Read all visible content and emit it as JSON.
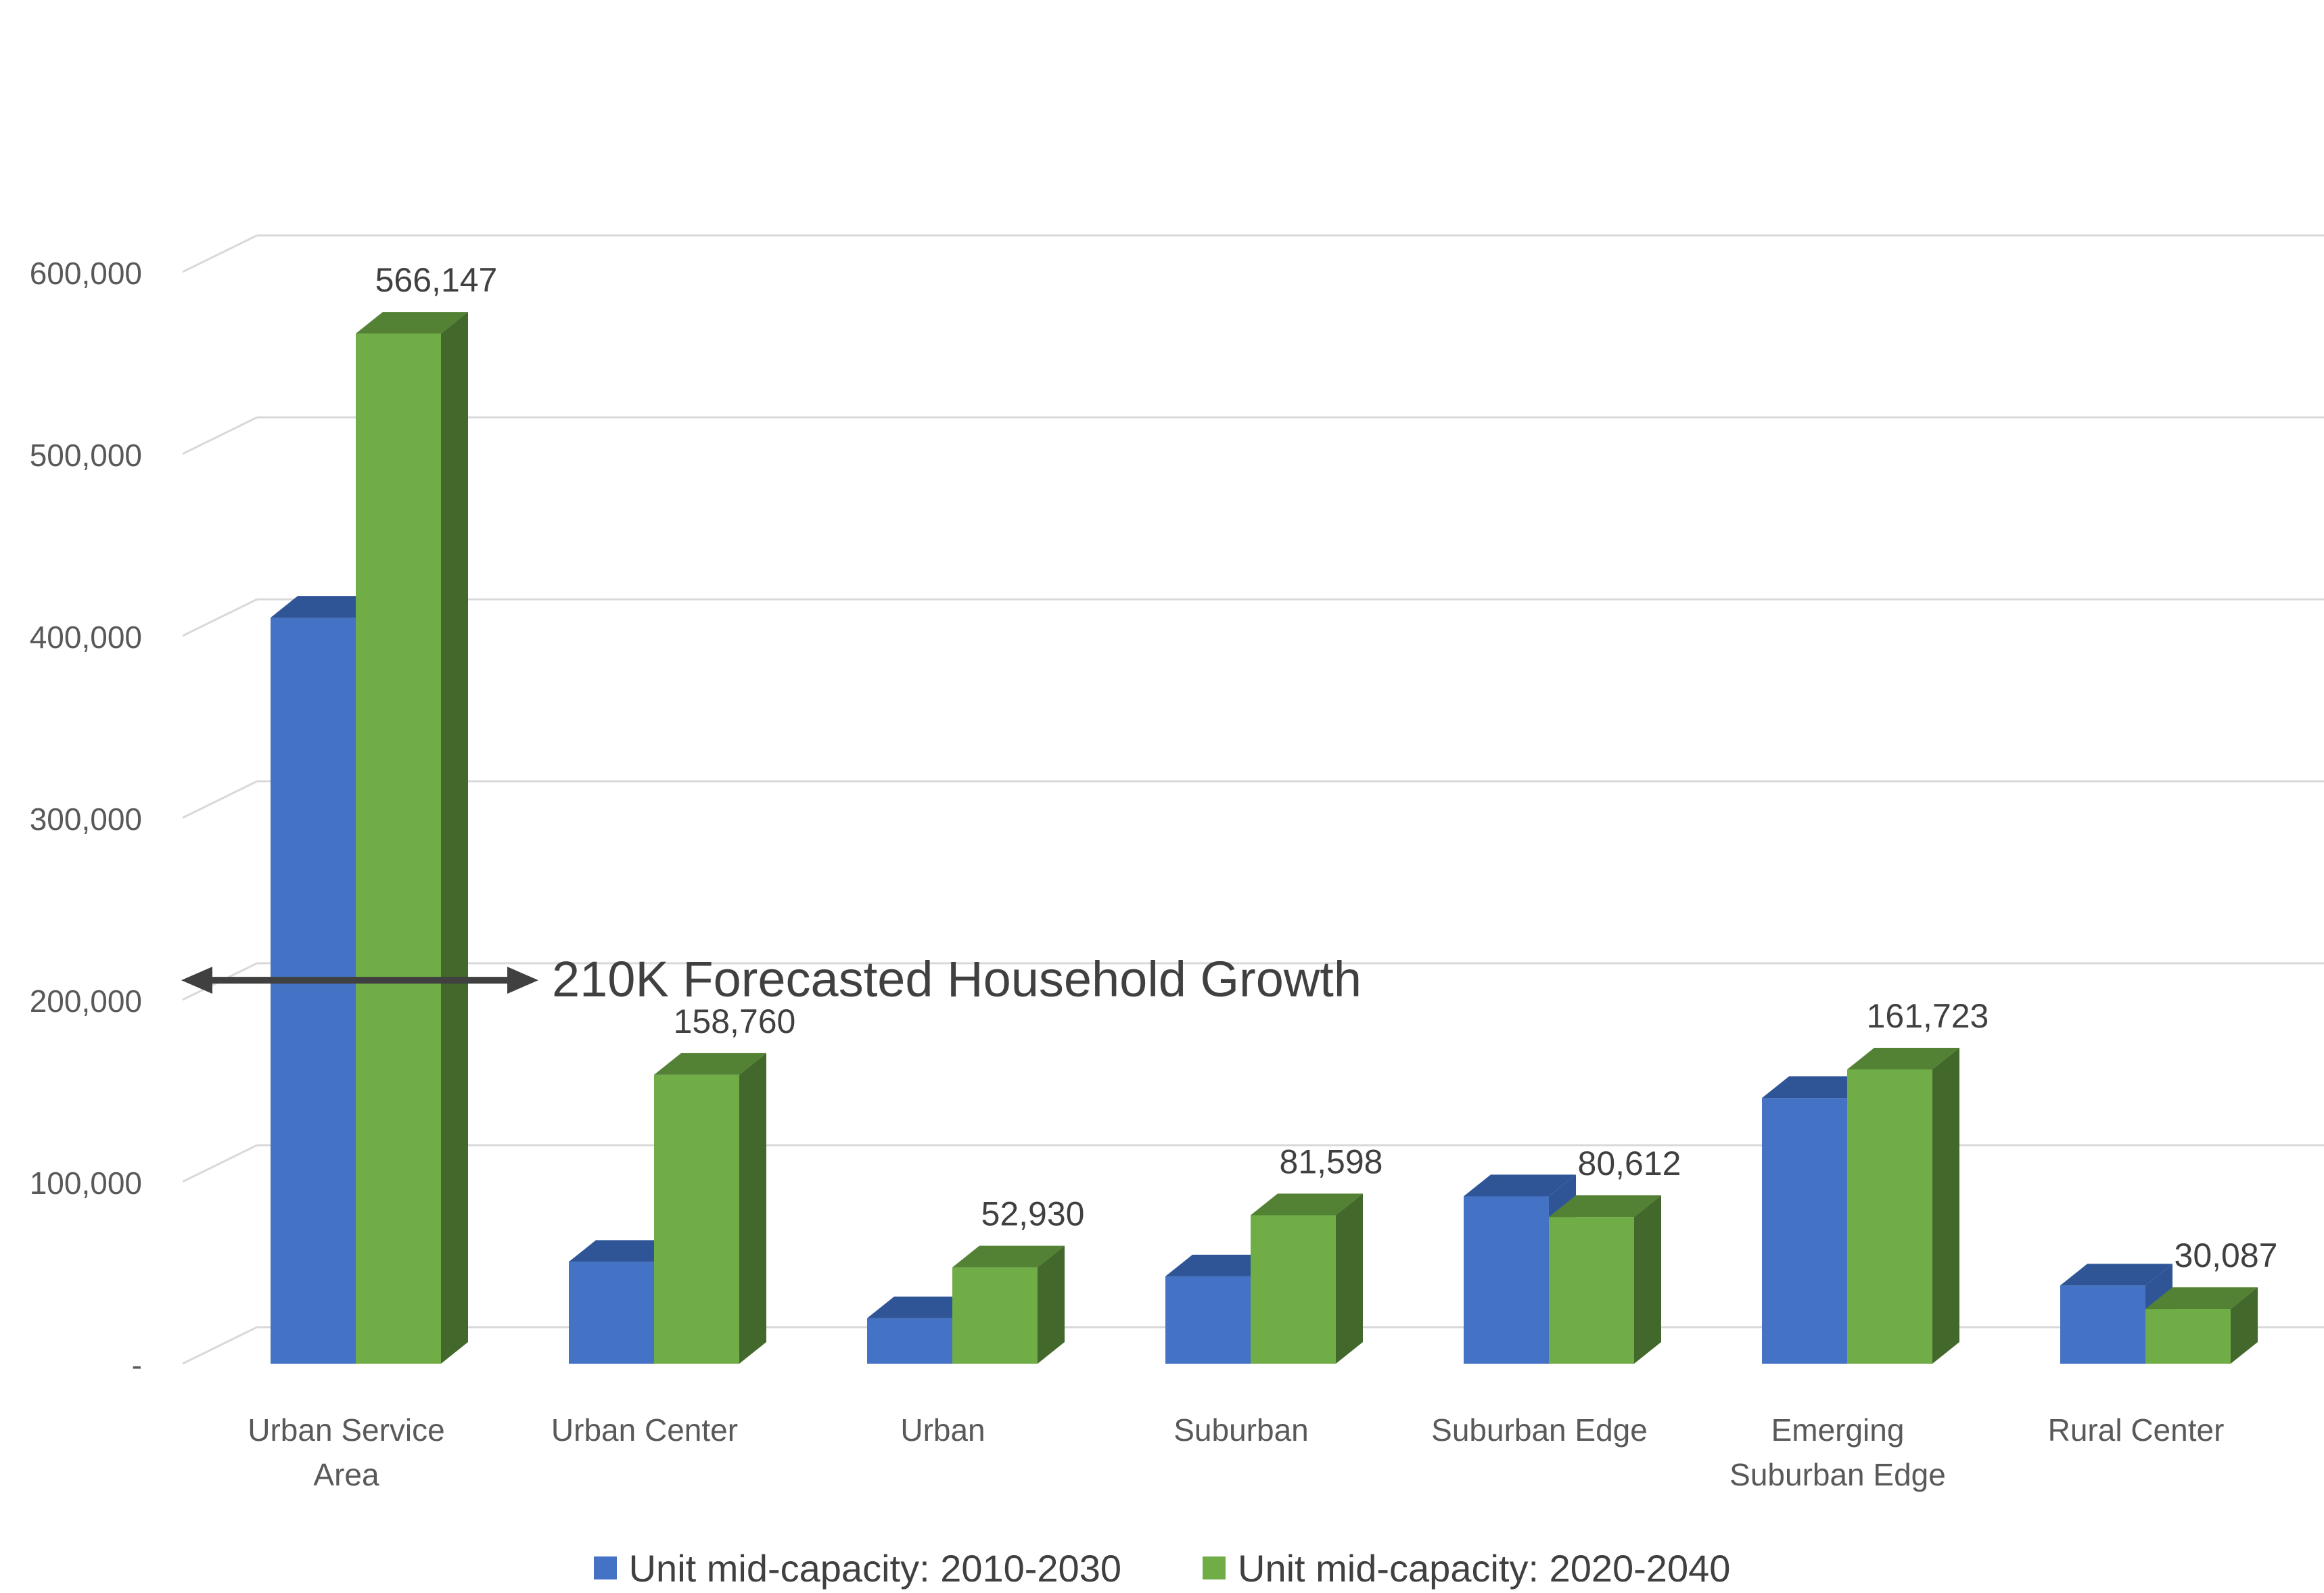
{
  "chart_data": {
    "type": "bar",
    "subtype": "clustered-3d-column",
    "title": "",
    "xlabel": "",
    "ylabel": "",
    "categories": [
      [
        "Urban Service",
        "Area"
      ],
      [
        "Urban Center"
      ],
      [
        "Urban"
      ],
      [
        "Suburban"
      ],
      [
        "Suburban Edge"
      ],
      [
        "Emerging",
        "Suburban Edge"
      ],
      [
        "Rural Center"
      ]
    ],
    "series": [
      {
        "name": "Unit mid-capacity: 2010-2030",
        "color": "#4472C4",
        "top_color": "#2F5597",
        "side_color": "#2F5597",
        "values": [
          410000,
          56000,
          25000,
          48000,
          92000,
          146000,
          43000
        ],
        "labels": [
          "",
          "",
          "",
          "",
          "",
          "",
          ""
        ]
      },
      {
        "name": "Unit mid-capacity: 2020-2040",
        "color": "#70AD47",
        "top_color": "#548235",
        "side_color": "#43682B",
        "values": [
          566147,
          158760,
          52930,
          81598,
          80612,
          161723,
          30087
        ],
        "labels": [
          "566,147",
          "158,760",
          "52,930",
          "81,598",
          "80,612",
          "161,723",
          "30,087"
        ]
      }
    ],
    "ylim": [
      0,
      600000
    ],
    "yticks": [
      {
        "value": 0,
        "label": "-"
      },
      {
        "value": 100000,
        "label": "100,000"
      },
      {
        "value": 200000,
        "label": "200,000"
      },
      {
        "value": 300000,
        "label": "300,000"
      },
      {
        "value": 400000,
        "label": "400,000"
      },
      {
        "value": 500000,
        "label": "500,000"
      },
      {
        "value": 600000,
        "label": "600,000"
      }
    ],
    "grid": true,
    "legend": "bottom",
    "annotation": {
      "text": "210K Forecasted Household Growth",
      "value": 210000,
      "style": "double-arrow"
    }
  }
}
